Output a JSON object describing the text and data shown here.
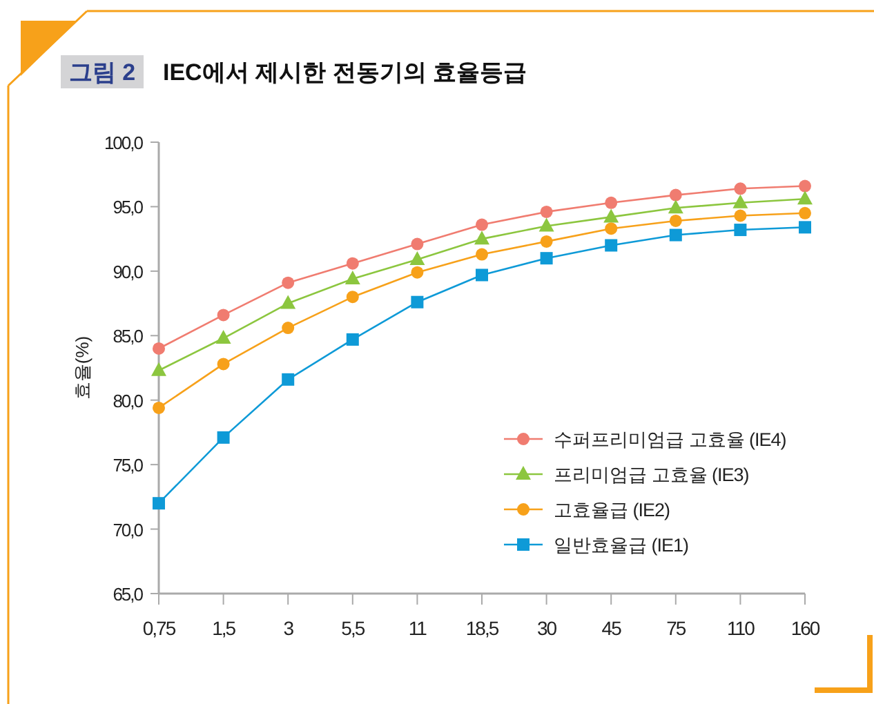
{
  "chart_data": {
    "type": "line",
    "title": "IEC에서 제시한 전동기의 효율등급",
    "annotations": [
      "그림 2"
    ],
    "ylabel": "효율(%)",
    "categories": [
      "0,75",
      "1,5",
      "3",
      "5,5",
      "11",
      "18,5",
      "30",
      "45",
      "75",
      "110",
      "160"
    ],
    "ylim": [
      65,
      100
    ],
    "yticks": [
      {
        "value": 65,
        "label": "65,0"
      },
      {
        "value": 70,
        "label": "70,0"
      },
      {
        "value": 75,
        "label": "75,0"
      },
      {
        "value": 80,
        "label": "80,0"
      },
      {
        "value": 85,
        "label": "85,0"
      },
      {
        "value": 90,
        "label": "90,0"
      },
      {
        "value": 95,
        "label": "95,0"
      },
      {
        "value": 100,
        "label": "100,0"
      }
    ],
    "grid": false,
    "legend": "bottom right",
    "line_style": "solid",
    "series": [
      {
        "name": "수퍼프리미엄급 고효율 (IE4)",
        "color": "#f07c70",
        "marker": "circle",
        "values": [
          84.0,
          86.6,
          89.1,
          90.6,
          92.1,
          93.6,
          94.6,
          95.3,
          95.9,
          96.4,
          96.6
        ]
      },
      {
        "name": "프리미엄급 고효율 (IE3)",
        "color": "#8cc63f",
        "marker": "triangle",
        "values": [
          82.3,
          84.8,
          87.5,
          89.4,
          90.9,
          92.5,
          93.5,
          94.2,
          94.9,
          95.3,
          95.6
        ]
      },
      {
        "name": "고효율급 (IE2)",
        "color": "#f7a11a",
        "marker": "circle",
        "values": [
          79.4,
          82.8,
          85.6,
          88.0,
          89.9,
          91.3,
          92.3,
          93.3,
          93.9,
          94.3,
          94.5
        ]
      },
      {
        "name": "일반효율급 (IE1)",
        "color": "#0e9ad7",
        "marker": "square",
        "values": [
          72.0,
          77.1,
          81.6,
          84.7,
          87.6,
          89.7,
          91.0,
          92.0,
          92.8,
          93.2,
          93.4
        ]
      }
    ]
  }
}
